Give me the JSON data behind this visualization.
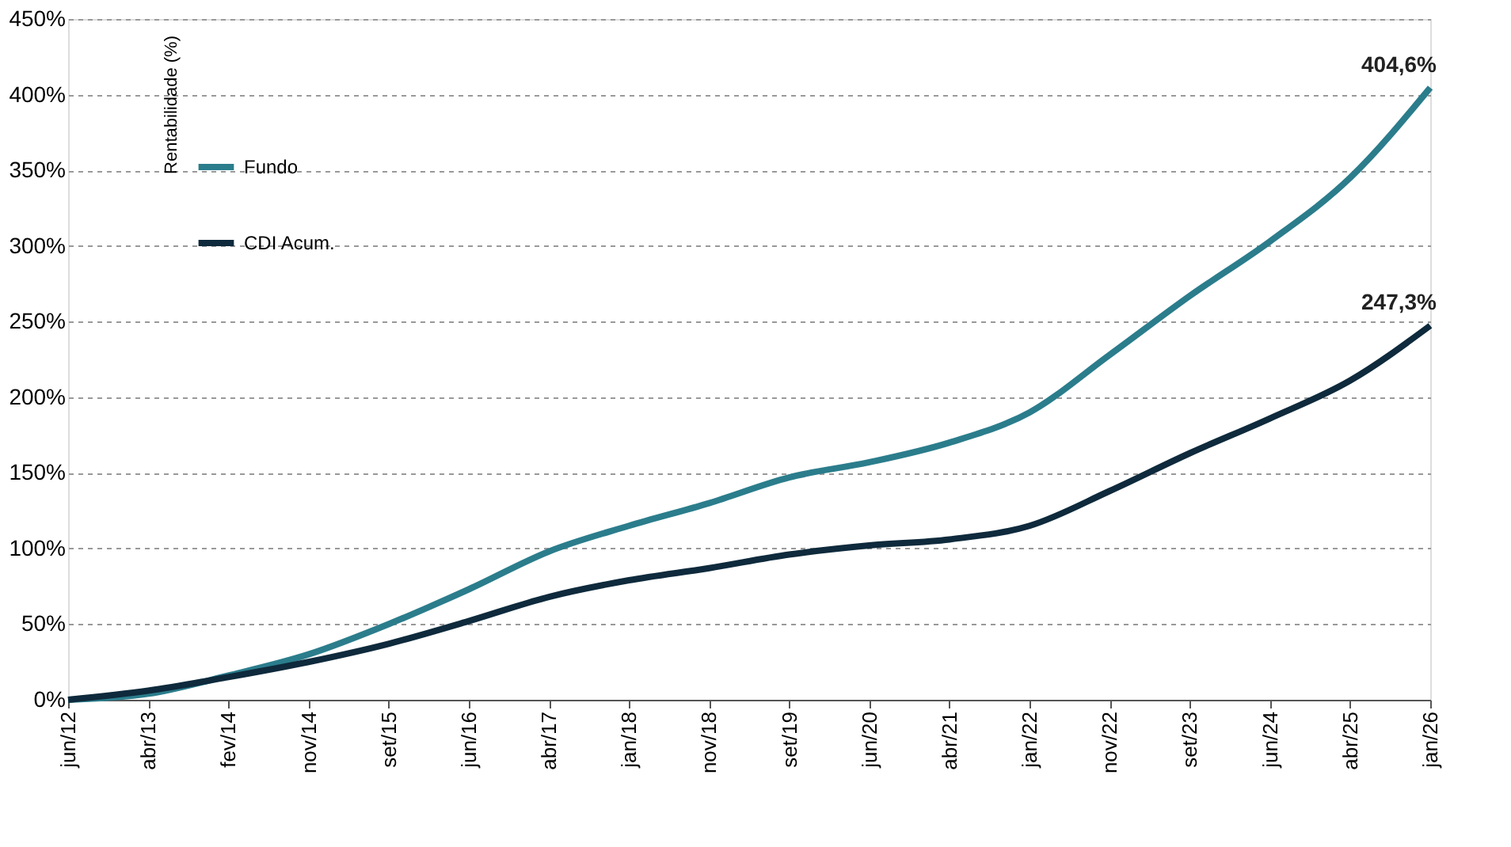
{
  "chart_data": {
    "type": "line",
    "ylabel": "Rentabilidade (%)",
    "categories": [
      "jun/12",
      "abr/13",
      "fev/14",
      "nov/14",
      "set/15",
      "jun/16",
      "abr/17",
      "jan/18",
      "nov/18",
      "set/19",
      "jun/20",
      "abr/21",
      "jan/22",
      "nov/22",
      "set/23",
      "jun/24",
      "abr/25",
      "jan/26"
    ],
    "series": [
      {
        "name": "Fundo",
        "color": "#2b7d8c",
        "values": [
          0,
          4,
          16,
          30,
          50,
          73,
          98,
          115,
          130,
          147,
          157,
          170,
          190,
          228,
          267,
          303,
          345,
          404.6
        ],
        "value_labels": [
          null,
          null,
          null,
          null,
          null,
          null,
          null,
          null,
          null,
          null,
          null,
          null,
          null,
          null,
          null,
          null,
          null,
          "404,6%"
        ]
      },
      {
        "name": "CDI Acum.",
        "color": "#0e2a3c",
        "values": [
          0,
          6,
          15,
          25,
          37,
          52,
          68,
          79,
          87,
          96,
          102,
          106,
          115,
          138,
          163,
          186,
          211,
          247.3
        ],
        "value_labels": [
          null,
          null,
          null,
          null,
          null,
          null,
          null,
          null,
          null,
          null,
          null,
          null,
          null,
          null,
          null,
          null,
          null,
          "247,3%"
        ]
      }
    ],
    "ylim": [
      0,
      450
    ],
    "yticks": [
      {
        "value": 0,
        "label": "0%"
      },
      {
        "value": 50,
        "label": "50%"
      },
      {
        "value": 100,
        "label": "100%"
      },
      {
        "value": 150,
        "label": "150%"
      },
      {
        "value": 200,
        "label": "200%"
      },
      {
        "value": 250,
        "label": "250%"
      },
      {
        "value": 300,
        "label": "300%"
      },
      {
        "value": 350,
        "label": "350%"
      },
      {
        "value": 400,
        "label": "400%"
      },
      {
        "value": 450,
        "label": "450%"
      }
    ],
    "grid": "y",
    "legend": "top left",
    "marker": "none",
    "line_style": "solid"
  }
}
